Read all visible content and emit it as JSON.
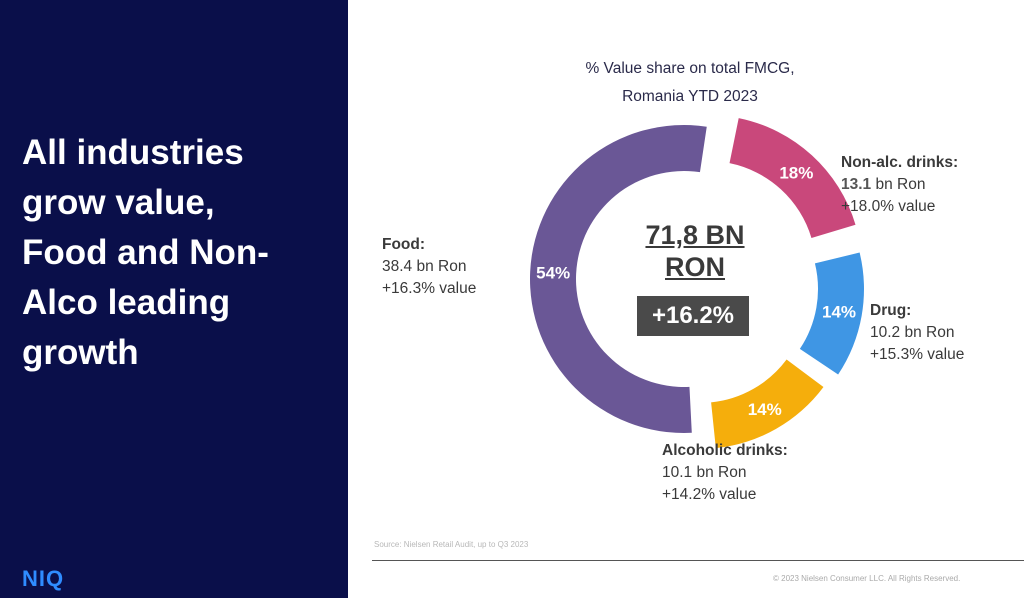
{
  "headline": [
    "All industries",
    "grow value,",
    "Food and Non-",
    "Alco leading",
    "growth"
  ],
  "logo": "NIQ",
  "chart_data": {
    "type": "pie",
    "title": [
      "% Value share on total FMCG,",
      "Romania YTD 2023"
    ],
    "center_total": [
      "71,8 BN",
      "RON"
    ],
    "center_growth": "+16.2%",
    "slices": [
      {
        "name": "Food:",
        "share": 54,
        "label": "54%",
        "value_line": "38.4 bn Ron",
        "growth_line": "+16.3% value",
        "color": "#6a5796"
      },
      {
        "name": "Non-alc. drinks:",
        "share": 18,
        "label": "18%",
        "value_num": "13.1",
        "value_unit": " bn Ron",
        "growth_line": "+18.0%  value",
        "color": "#c9487b"
      },
      {
        "name": "Drug:",
        "share": 14,
        "label": "14%",
        "value_line": "10.2 bn Ron",
        "growth_line": "+15.3% value",
        "color": "#3f96e4"
      },
      {
        "name": "Alcoholic drinks:",
        "share": 14,
        "label": "14%",
        "value_line": "10.1 bn Ron",
        "growth_line": "+14.2% value",
        "color": "#f5ae0c"
      }
    ]
  },
  "source": "Source: Nielsen Retail Audit, up to Q3 2023",
  "copyright": "© 2023 Nielsen Consumer LLC. All Rights Reserved."
}
